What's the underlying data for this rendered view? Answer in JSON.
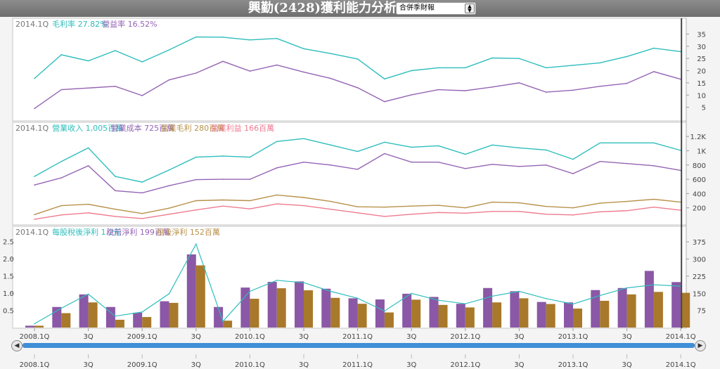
{
  "header": {
    "title": "興勤(2428)獲利能力分析",
    "report_select": {
      "selected": "合併季財報",
      "arrow_up": "▲",
      "arrow_down": "▼"
    }
  },
  "colors": {
    "teal": "#2fbdbd",
    "purple": "#9464b4",
    "gold": "#b8914a",
    "pink": "#ee7b90",
    "bar_eps": "#8a58a6",
    "bar_net": "#a8792a",
    "crosshair": "#444444"
  },
  "chart_data": [
    {
      "type": "line",
      "legend": [
        {
          "text": "2014.1Q",
          "color": "#777777"
        },
        {
          "text": "毛利率 27.82%",
          "color": "#2fbdbd"
        },
        {
          "text": "營益率 16.52%",
          "color": "#9464b4"
        }
      ],
      "ylim": [
        0,
        38
      ],
      "yticks": [
        5,
        10,
        15,
        20,
        25,
        30,
        35
      ],
      "series": [
        {
          "name": "毛利率",
          "color": "#2fbdbd",
          "values": [
            16.8,
            26.5,
            24.0,
            28.2,
            23.6,
            28.5,
            33.8,
            33.7,
            32.6,
            33.2,
            29.0,
            27.0,
            24.8,
            16.6,
            20.0,
            21.2,
            21.2,
            25.2,
            25.0,
            21.2,
            22.2,
            23.2,
            25.8,
            29.2,
            27.8
          ]
        },
        {
          "name": "營益率",
          "color": "#9464b4",
          "values": [
            4.5,
            12.2,
            12.9,
            13.6,
            9.8,
            16.2,
            19.0,
            23.8,
            19.8,
            22.3,
            19.4,
            16.8,
            13.0,
            7.3,
            10.1,
            12.2,
            11.8,
            13.3,
            15.0,
            11.2,
            12.0,
            13.6,
            14.8,
            19.6,
            16.5
          ]
        }
      ]
    },
    {
      "type": "line",
      "legend": [
        {
          "text": "2014.1Q",
          "color": "#777777"
        },
        {
          "text": "營業收入 1,005百萬",
          "color": "#2fbdbd"
        },
        {
          "text": "營業成本 725百萬",
          "color": "#9464b4"
        },
        {
          "text": "營業毛利 280百萬",
          "color": "#b8914a"
        },
        {
          "text": "營業利益 166百萬",
          "color": "#ee7b90"
        }
      ],
      "ylim": [
        0,
        1300
      ],
      "yticks": [
        200,
        400,
        600,
        800,
        1000,
        1200
      ],
      "ytick_labels": [
        "200",
        "400",
        "600",
        "800",
        "1K",
        "1.2K"
      ],
      "series": [
        {
          "name": "營業收入",
          "color": "#2fbdbd",
          "values": [
            640,
            850,
            1040,
            640,
            560,
            730,
            910,
            925,
            910,
            1130,
            1170,
            1080,
            990,
            1120,
            1050,
            1070,
            950,
            1080,
            1040,
            1010,
            880,
            1110,
            1110,
            1110,
            1005
          ]
        },
        {
          "name": "營業成本",
          "color": "#9464b4",
          "values": [
            520,
            620,
            790,
            440,
            410,
            510,
            595,
            600,
            600,
            760,
            840,
            800,
            740,
            960,
            840,
            840,
            750,
            810,
            780,
            800,
            680,
            850,
            820,
            790,
            725
          ]
        },
        {
          "name": "營業毛利",
          "color": "#b8914a",
          "values": [
            105,
            230,
            250,
            180,
            120,
            195,
            300,
            310,
            300,
            380,
            345,
            290,
            215,
            210,
            225,
            235,
            200,
            280,
            270,
            220,
            200,
            265,
            290,
            320,
            280
          ]
        },
        {
          "name": "營業利益",
          "color": "#ee7b90",
          "values": [
            40,
            100,
            130,
            80,
            50,
            110,
            170,
            225,
            185,
            255,
            230,
            180,
            130,
            80,
            110,
            135,
            125,
            150,
            150,
            110,
            100,
            145,
            160,
            210,
            166
          ]
        }
      ]
    },
    {
      "type": "bar",
      "legend": [
        {
          "text": "2014.1Q",
          "color": "#777777"
        },
        {
          "text": "每股稅後淨利 1.2元",
          "color": "#2fbdbd"
        },
        {
          "text": "稅前淨利 199百萬",
          "color": "#9464b4"
        },
        {
          "text": "稅後淨利 152百萬",
          "color": "#b8914a"
        }
      ],
      "ylim_left": [
        0,
        2.65
      ],
      "yticks_left": [
        0.5,
        1.0,
        1.5,
        2.0,
        2.5
      ],
      "ytick_labels_left": [
        "0.5",
        "1.0",
        "1.5",
        "2.0",
        "2.5"
      ],
      "ylim_right": [
        0,
        400
      ],
      "yticks_right": [
        75,
        150,
        225,
        300,
        375
      ],
      "series": [
        {
          "name": "稅前淨利",
          "color": "#8a58a6",
          "axis": "right",
          "values": [
            8,
            90,
            145,
            90,
            65,
            115,
            320,
            90,
            175,
            200,
            202,
            170,
            128,
            123,
            148,
            134,
            104,
            173,
            159,
            112,
            110,
            164,
            173,
            248,
            199
          ]
        },
        {
          "name": "稅後淨利",
          "color": "#a8792a",
          "axis": "right",
          "values": [
            8,
            63,
            110,
            34,
            46,
            108,
            272,
            30,
            126,
            172,
            163,
            130,
            104,
            66,
            122,
            99,
            88,
            110,
            128,
            103,
            83,
            117,
            145,
            156,
            152
          ]
        },
        {
          "name": "每股稅後淨利",
          "color": "#2fbdbd",
          "axis": "left",
          "values": [
            0.11,
            0.56,
            0.97,
            0.33,
            0.45,
            0.98,
            2.42,
            0.18,
            1.05,
            1.37,
            1.3,
            1.05,
            0.85,
            0.48,
            0.99,
            0.79,
            0.69,
            0.91,
            1.05,
            0.84,
            0.68,
            0.93,
            1.15,
            1.24,
            1.2
          ]
        }
      ]
    }
  ],
  "x_axis": {
    "bottom_labels": [
      {
        "index": 0,
        "text": "2008.1Q"
      },
      {
        "index": 2,
        "text": "3Q"
      },
      {
        "index": 4,
        "text": "2009.1Q"
      },
      {
        "index": 6,
        "text": "3Q"
      },
      {
        "index": 8,
        "text": "2010.1Q"
      },
      {
        "index": 10,
        "text": "3Q"
      },
      {
        "index": 12,
        "text": "2011.1Q"
      },
      {
        "index": 14,
        "text": "3Q"
      },
      {
        "index": 16,
        "text": "2012.1Q"
      },
      {
        "index": 18,
        "text": "3Q"
      },
      {
        "index": 20,
        "text": "2013.1Q"
      },
      {
        "index": 22,
        "text": "3Q"
      },
      {
        "index": 24,
        "text": "2014.1Q"
      }
    ],
    "crosshair_index": 24
  },
  "scrollbar": {
    "left_label": "◀",
    "right_label": "▶"
  }
}
